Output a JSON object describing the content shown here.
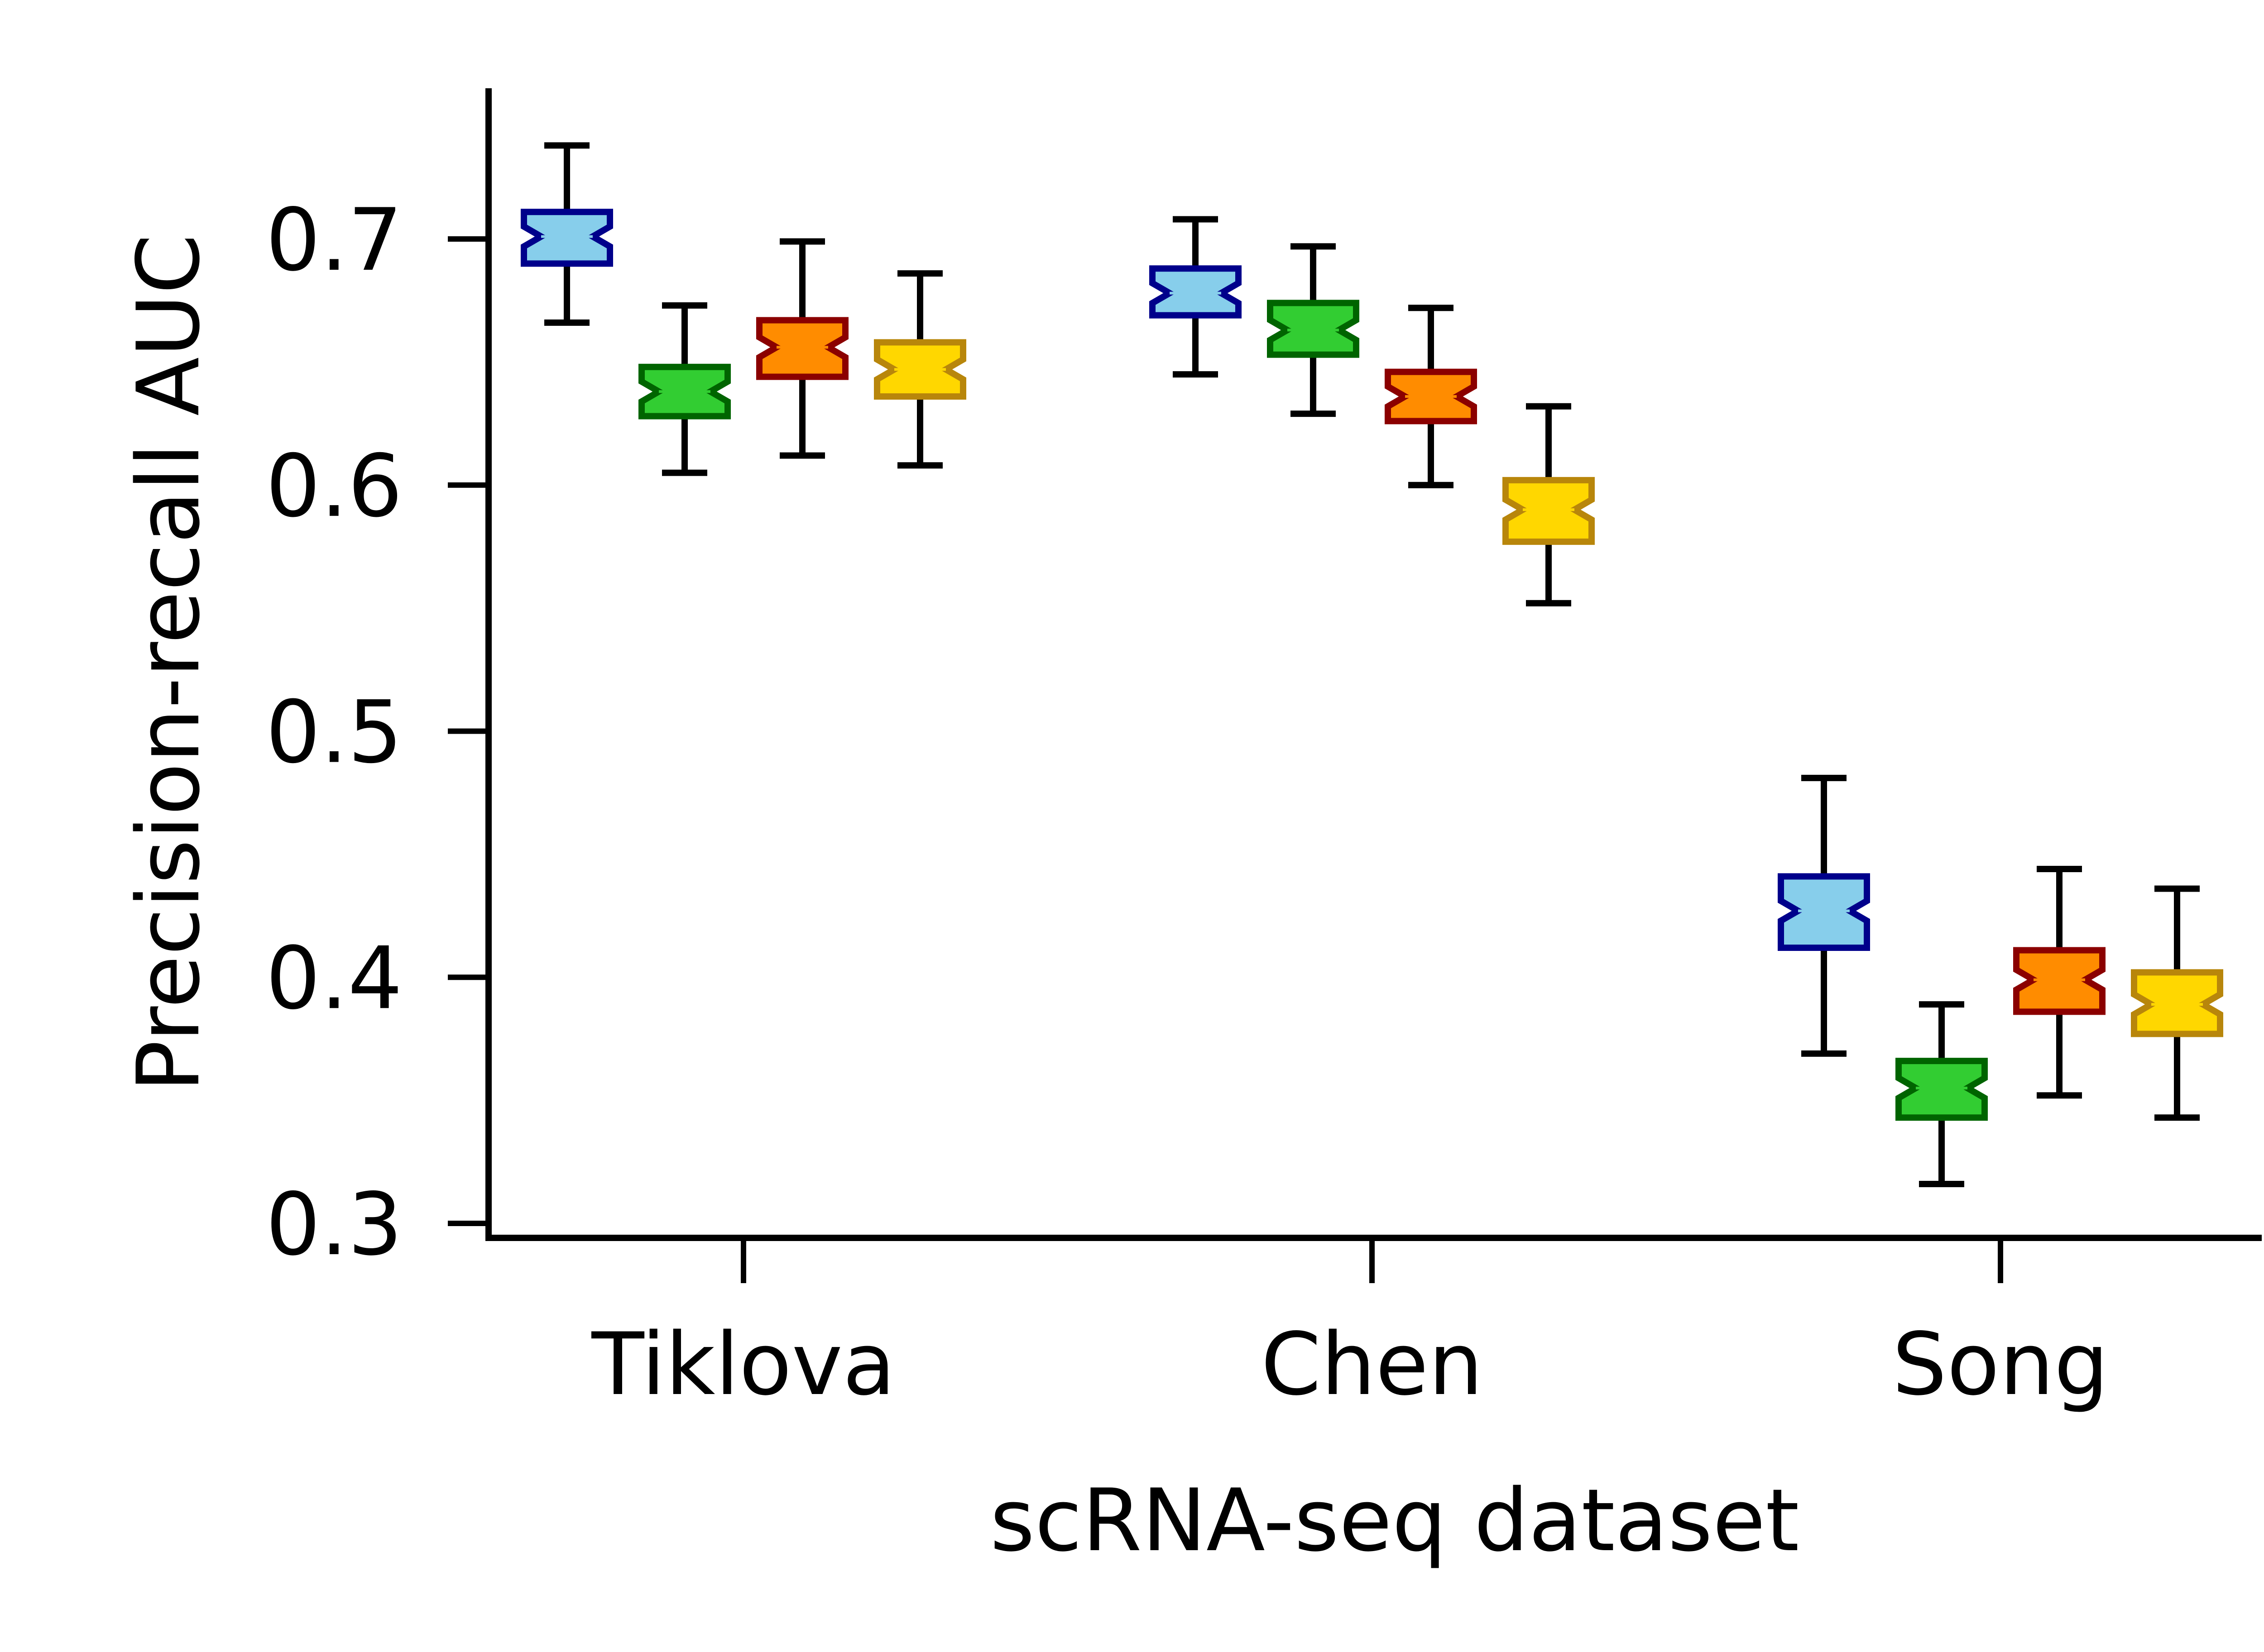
{
  "chart_data": {
    "type": "box",
    "xlabel": "scRNA-seq dataset",
    "ylabel": "Precision-recall AUC",
    "categories": [
      "Tiklova",
      "Chen",
      "Song"
    ],
    "ylim": [
      0.295,
      0.76
    ],
    "yticks": [
      0.3,
      0.4,
      0.5,
      0.6,
      0.7
    ],
    "ytick_labels": [
      "0.3",
      "0.4",
      "0.5",
      "0.6",
      "0.7"
    ],
    "grid": false,
    "legend": null,
    "series_styles": [
      {
        "edge": "#00008b",
        "fill": "#87ceeb"
      },
      {
        "edge": "#006400",
        "fill": "#32cd32"
      },
      {
        "edge": "#8b0000",
        "fill": "#ff8c00"
      },
      {
        "edge": "#b8860b",
        "fill": "#ffd700"
      }
    ],
    "series": [
      {
        "boxes": [
          {
            "whislo": 0.666,
            "q1": 0.69,
            "med": 0.701,
            "q3": 0.711,
            "whishi": 0.738
          },
          {
            "whislo": 0.645,
            "q1": 0.669,
            "med": 0.678,
            "q3": 0.688,
            "whishi": 0.708
          },
          {
            "whislo": 0.369,
            "q1": 0.412,
            "med": 0.427,
            "q3": 0.441,
            "whishi": 0.481
          }
        ]
      },
      {
        "boxes": [
          {
            "whislo": 0.605,
            "q1": 0.628,
            "med": 0.638,
            "q3": 0.648,
            "whishi": 0.673
          },
          {
            "whislo": 0.629,
            "q1": 0.653,
            "med": 0.663,
            "q3": 0.674,
            "whishi": 0.697
          },
          {
            "whislo": 0.316,
            "q1": 0.343,
            "med": 0.355,
            "q3": 0.366,
            "whishi": 0.389
          }
        ]
      },
      {
        "boxes": [
          {
            "whislo": 0.612,
            "q1": 0.644,
            "med": 0.656,
            "q3": 0.667,
            "whishi": 0.699
          },
          {
            "whislo": 0.6,
            "q1": 0.626,
            "med": 0.636,
            "q3": 0.646,
            "whishi": 0.672
          },
          {
            "whislo": 0.352,
            "q1": 0.386,
            "med": 0.399,
            "q3": 0.411,
            "whishi": 0.444
          }
        ]
      },
      {
        "boxes": [
          {
            "whislo": 0.608,
            "q1": 0.636,
            "med": 0.647,
            "q3": 0.658,
            "whishi": 0.686
          },
          {
            "whislo": 0.552,
            "q1": 0.577,
            "med": 0.59,
            "q3": 0.602,
            "whishi": 0.632
          },
          {
            "whislo": 0.343,
            "q1": 0.377,
            "med": 0.389,
            "q3": 0.402,
            "whishi": 0.436
          }
        ]
      }
    ]
  }
}
